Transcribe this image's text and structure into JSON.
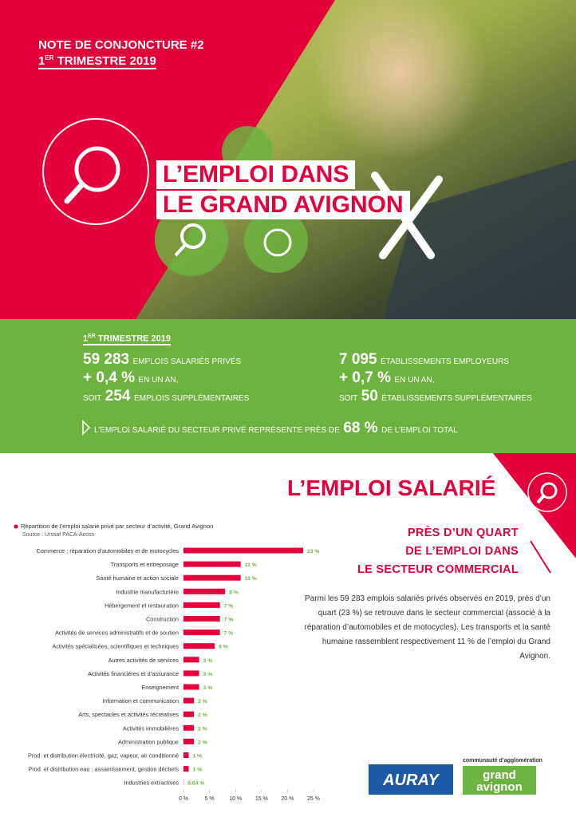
{
  "header": {
    "kicker": "NOTE DE CONJONCTURE #2",
    "period_number": "1",
    "period_suffix": "ER",
    "period_rest": "TRIMESTRE 2019",
    "title_line1": "L’EMPLOI DANS",
    "title_line2": "LE GRAND AVIGNON"
  },
  "stats": {
    "period_number": "1",
    "period_suffix": "ER",
    "period_rest": "TRIMESTRE 2019",
    "left": [
      {
        "big": "59 283",
        "small": "EMPLOIS SALARIÉS PRIVÉS"
      },
      {
        "big": "+ 0,4 %",
        "small": "EN UN AN,"
      },
      {
        "pre": "SOIT",
        "big": "254",
        "small": "EMPLOIS SUPPLÉMENTAIRES"
      }
    ],
    "right": [
      {
        "big": "7 095",
        "small": "ÉTABLISSEMENTS EMPLOYEURS"
      },
      {
        "big": "+ 0,7 %",
        "small": "EN UN AN,"
      },
      {
        "pre": "SOIT",
        "big": "50",
        "small": "ÉTABLISSEMENTS SUPPLÉMENTAIRES"
      }
    ],
    "summary_before": "L’EMPLOI SALARIÉ DU SECTEUR PRIVÉ REPRÉSENTE PRÈS DE",
    "summary_big": "68 %",
    "summary_after": "DE L’EMPLOI TOTAL"
  },
  "section": {
    "title": "L’EMPLOI SALARIÉ",
    "callout": [
      "PRÈS D’UN QUART",
      "DE L’EMPLOI DANS",
      "LE SECTEUR COMMERCIAL"
    ],
    "paragraph": "Parmi les 59 283 emplois salariés privés observés en 2019, près d’un quart (23 %) se retrouve dans le secteur commercial (associé à la réparation d’automobiles et de motocycles). Les transports et la santé humaine rassemblent respectivement 11 % de l’emploi du Grand Avignon."
  },
  "chart_data": {
    "type": "hbar",
    "title": "Répartition de l’emploi salarié privé par secteur d’activité, Grand Avignon",
    "source": "Source : Urssaf PACA-Acoss",
    "color": "#e4003a",
    "label_color": "#6cb33f",
    "categories": [
      "Commerce ; réparation d’automobiles et de motocycles",
      "Transports et entreposage",
      "Santé humaine et action sociale",
      "Industrie manufacturière",
      "Hébergement et restauration",
      "Construction",
      "Activités de services administratifs et de soutien",
      "Activités spécialisées, scientifiques et techniques",
      "Autres activités de services",
      "Activités financières et d’assurance",
      "Enseignement",
      "Information et communication",
      "Arts, spectacles et activités récréatives",
      "Activités immobilières",
      "Administration publique",
      "Prod. et distribution électricité, gaz, vapeur, air conditionné",
      "Prod. et distribution eau ; assainissement, gestion déchets",
      "Industries extractives"
    ],
    "values": [
      23,
      11,
      11,
      8,
      7,
      7,
      7,
      6,
      3,
      3,
      3,
      2,
      2,
      2,
      2,
      1,
      1,
      0.04
    ],
    "value_labels": [
      "23 %",
      "11 %",
      "11 %",
      "8 %",
      "7 %",
      "7 %",
      "7 %",
      "6 %",
      "3 %",
      "3 %",
      "3 %",
      "2 %",
      "2 %",
      "2 %",
      "2 %",
      "1 %",
      "1 %",
      "0,04 %"
    ],
    "xlim": [
      0,
      25
    ],
    "xticks": [
      {
        "value": 0,
        "label": "0 %"
      },
      {
        "value": 5,
        "label": "5 %"
      },
      {
        "value": 10,
        "label": "10 %"
      },
      {
        "value": 15,
        "label": "15 %"
      },
      {
        "value": 20,
        "label": "20 %"
      },
      {
        "value": 25,
        "label": "25 %"
      }
    ]
  },
  "logos": {
    "auray": "AURAY",
    "agglo_caption": "communauté d’agglomération",
    "grand": "grand",
    "avignon": "avignon"
  }
}
